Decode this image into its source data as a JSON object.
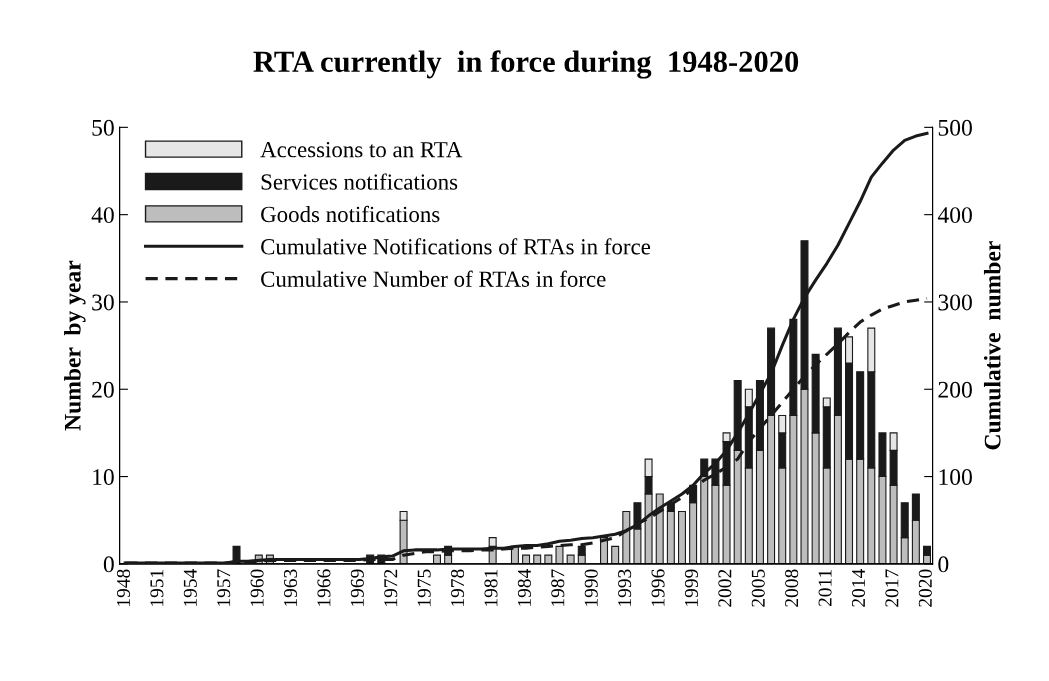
{
  "chart_data": {
    "type": "bar",
    "title": "RTA currently  in force during  1948-2020",
    "ylabel": "Number  by year",
    "y2label": "Cumulative  number",
    "categories": [
      "1948",
      null,
      null,
      "1951",
      null,
      null,
      "1954",
      null,
      null,
      "1957",
      null,
      null,
      "1960",
      null,
      null,
      "1963",
      null,
      null,
      "1966",
      null,
      null,
      "1969",
      null,
      null,
      "1972",
      null,
      null,
      "1975",
      null,
      null,
      "1978",
      null,
      null,
      "1981",
      null,
      null,
      "1984",
      null,
      null,
      "1987",
      null,
      null,
      "1990",
      null,
      null,
      "1993",
      null,
      null,
      "1996",
      null,
      null,
      "1999",
      null,
      null,
      "2002",
      null,
      null,
      "2005",
      null,
      null,
      "2008",
      null,
      null,
      "2011",
      null,
      null,
      "2014",
      null,
      null,
      "2017",
      null,
      null,
      "2020"
    ],
    "stacked": true,
    "series": [
      {
        "name": "Goods notifications",
        "color": "#bdbdbd",
        "values": [
          0,
          0,
          0,
          0,
          0,
          0,
          0,
          0,
          0,
          0,
          0,
          0,
          1,
          1,
          0,
          0,
          0,
          0,
          0,
          0,
          0,
          0,
          0,
          0,
          0,
          5,
          0,
          0,
          1,
          1,
          0,
          0,
          0,
          2,
          0,
          2,
          1,
          1,
          1,
          2,
          1,
          1,
          0,
          3,
          2,
          6,
          4,
          8,
          8,
          6,
          6,
          7,
          10,
          9,
          9,
          13,
          11,
          13,
          17,
          11,
          17,
          20,
          15,
          11,
          17,
          12,
          12,
          11,
          10,
          9,
          3,
          5,
          1
        ]
      },
      {
        "name": "Services notifications",
        "color": "#1a1a1a",
        "values": [
          0,
          0,
          0,
          0,
          0,
          0,
          0,
          0,
          0,
          0,
          2,
          0,
          0,
          0,
          0,
          0,
          0,
          0,
          0,
          0,
          0,
          0,
          1,
          1,
          0,
          0,
          0,
          0,
          0,
          1,
          0,
          0,
          0,
          0,
          0,
          0,
          0,
          0,
          0,
          0,
          0,
          1,
          0,
          0,
          0,
          0,
          3,
          2,
          0,
          1,
          0,
          2,
          2,
          3,
          5,
          8,
          7,
          8,
          10,
          4,
          11,
          17,
          9,
          7,
          10,
          11,
          10,
          11,
          5,
          4,
          4,
          3,
          1
        ]
      },
      {
        "name": "Accessions to an RTA",
        "color": "#e6e6e6",
        "values": [
          0,
          0,
          0,
          0,
          0,
          0,
          0,
          0,
          0,
          0,
          0,
          0,
          0,
          0,
          0,
          0,
          0,
          0,
          0,
          0,
          0,
          0,
          0,
          0,
          0,
          1,
          0,
          0,
          0,
          0,
          0,
          0,
          0,
          1,
          0,
          0,
          0,
          0,
          0,
          0,
          0,
          0,
          0,
          0,
          0,
          0,
          0,
          2,
          0,
          0,
          0,
          0,
          0,
          0,
          1,
          0,
          2,
          0,
          0,
          2,
          0,
          0,
          0,
          1,
          0,
          3,
          0,
          5,
          0,
          2,
          0,
          0,
          0
        ]
      },
      {
        "name": "Cumulative Notifications of RTAs in force",
        "type": "line",
        "axis": "y2",
        "line_style": "solid",
        "color": "#1a1a1a",
        "values": [
          1,
          1,
          1,
          1,
          1,
          1,
          1,
          1,
          1,
          1,
          3,
          3,
          4,
          5,
          5,
          5,
          5,
          5,
          5,
          5,
          5,
          5,
          6,
          8,
          9,
          15,
          16,
          16,
          16,
          17,
          17,
          17,
          17,
          18,
          18,
          20,
          21,
          21,
          23,
          26,
          27,
          29,
          30,
          32,
          34,
          38,
          45,
          55,
          64,
          72,
          80,
          90,
          104,
          115,
          130,
          150,
          172,
          195,
          218,
          250,
          280,
          305,
          325,
          344,
          365,
          390,
          415,
          443,
          459,
          474,
          485,
          490,
          493
        ]
      },
      {
        "name": "Cumulative Number of RTAs in force",
        "type": "line",
        "axis": "y2",
        "line_style": "dashed",
        "color": "#1a1a1a",
        "values": [
          1,
          1,
          1,
          1,
          1,
          1,
          1,
          1,
          1,
          1,
          2,
          2,
          3,
          4,
          4,
          4,
          4,
          4,
          4,
          4,
          4,
          4,
          5,
          5,
          5,
          10,
          12,
          14,
          14,
          15,
          15,
          15,
          16,
          16,
          17,
          18,
          18,
          19,
          20,
          21,
          22,
          22,
          24,
          27,
          30,
          38,
          46,
          52,
          60,
          68,
          76,
          86,
          96,
          103,
          111,
          120,
          140,
          155,
          170,
          185,
          200,
          215,
          228,
          240,
          252,
          265,
          277,
          285,
          292,
          296,
          300,
          302,
          304
        ]
      }
    ],
    "ylim": [
      0,
      50
    ],
    "yticks": [
      0,
      10,
      20,
      30,
      40,
      50
    ],
    "y2lim": [
      0,
      500
    ],
    "y2ticks": [
      0,
      100,
      200,
      300,
      400,
      500
    ],
    "legend": "top left",
    "grid": false,
    "marker": "none"
  }
}
